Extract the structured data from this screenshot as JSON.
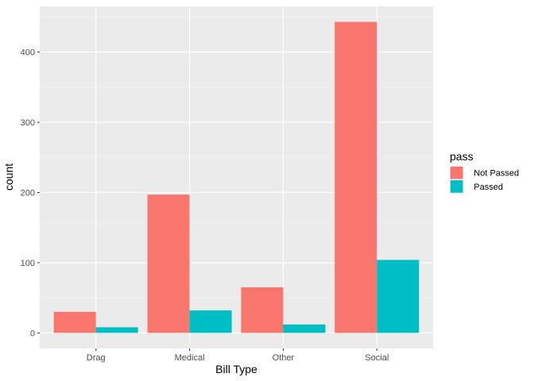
{
  "chart_data": {
    "type": "bar",
    "title": "",
    "xlabel": "Bill Type",
    "ylabel": "count",
    "categories": [
      "Drag",
      "Medical",
      "Other",
      "Social"
    ],
    "series": [
      {
        "name": "Not Passed",
        "color": "#F8766D",
        "values": [
          30,
          197,
          65,
          443
        ]
      },
      {
        "name": "Passed",
        "color": "#00BFC4",
        "values": [
          8,
          32,
          12,
          104
        ]
      }
    ],
    "ylim": [
      -22.15,
      465.15
    ],
    "yticks": [
      0,
      100,
      200,
      300,
      400
    ],
    "grid": true,
    "legend": {
      "title": "pass",
      "position": "right"
    },
    "colors": {
      "panel": "#EBEBEB",
      "grid_major": "#FFFFFF",
      "tick_text": "#4D4D4D"
    }
  }
}
